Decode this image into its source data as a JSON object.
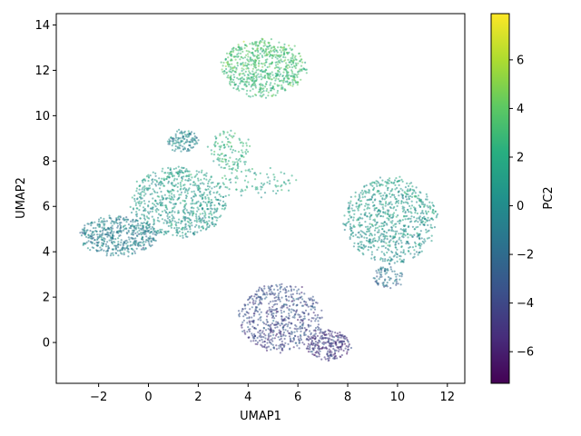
{
  "chart_data": {
    "type": "scatter",
    "title": "",
    "xlabel": "UMAP1",
    "ylabel": "UMAP2",
    "xlim": [
      -3.7,
      12.7
    ],
    "ylim": [
      -1.8,
      14.5
    ],
    "xticks": [
      -2,
      0,
      2,
      4,
      6,
      8,
      10,
      12
    ],
    "yticks": [
      0,
      2,
      4,
      6,
      8,
      10,
      12,
      14
    ],
    "grid": false,
    "colorbar": {
      "label": "PC2",
      "colormap": "viridis",
      "range": [
        -7.3,
        7.9
      ],
      "ticks": [
        -6,
        -4,
        -2,
        0,
        2,
        4,
        6
      ]
    },
    "clusters": [
      {
        "cx": 4.6,
        "cy": 12.1,
        "rx": 1.7,
        "ry": 1.25,
        "pc2": 3.0,
        "n": 700
      },
      {
        "cx": 1.2,
        "cy": 6.2,
        "rx": 1.9,
        "ry": 1.55,
        "pc2": 0.8,
        "n": 700
      },
      {
        "cx": -1.2,
        "cy": 4.7,
        "rx": 1.6,
        "ry": 0.85,
        "pc2": -0.8,
        "n": 500
      },
      {
        "cx": 9.7,
        "cy": 5.4,
        "rx": 1.85,
        "ry": 1.9,
        "pc2": 0.6,
        "n": 800
      },
      {
        "cx": 5.3,
        "cy": 1.1,
        "rx": 1.65,
        "ry": 1.5,
        "pc2": -3.8,
        "n": 600
      },
      {
        "cx": 7.2,
        "cy": -0.1,
        "rx": 0.9,
        "ry": 0.65,
        "pc2": -4.8,
        "n": 250
      },
      {
        "cx": 1.4,
        "cy": 8.9,
        "rx": 0.6,
        "ry": 0.45,
        "pc2": -0.3,
        "n": 120
      },
      {
        "cx": 3.3,
        "cy": 8.5,
        "rx": 0.8,
        "ry": 0.9,
        "pc2": 2.2,
        "n": 120
      },
      {
        "cx": 4.2,
        "cy": 7.1,
        "rx": 1.8,
        "ry": 0.6,
        "pc2": 1.6,
        "n": 90
      },
      {
        "cx": 9.6,
        "cy": 2.9,
        "rx": 0.6,
        "ry": 0.5,
        "pc2": -1.5,
        "n": 80
      }
    ]
  }
}
